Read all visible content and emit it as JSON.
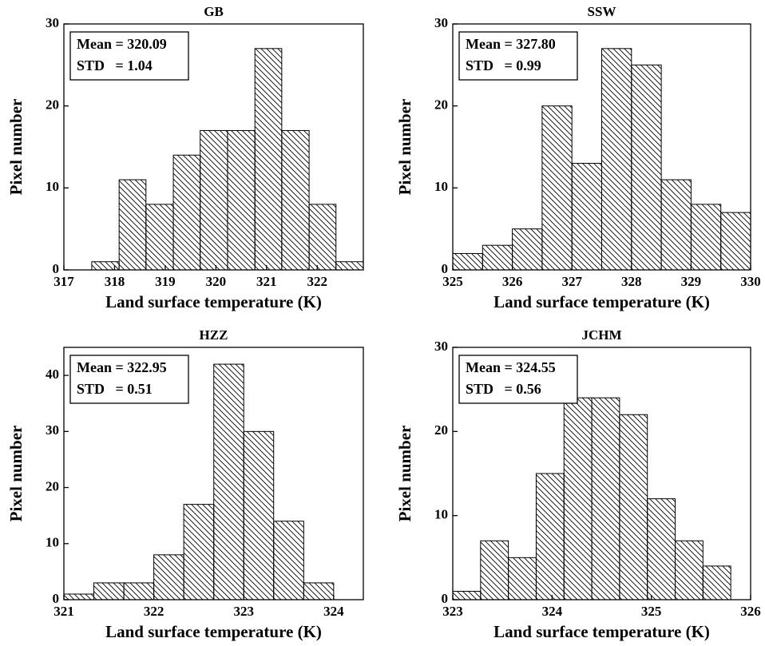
{
  "chart_data": [
    {
      "type": "histogram",
      "title": "GB",
      "xlabel": "Land surface temperature (K)",
      "ylabel": "Pixel number",
      "bins": [
        317.55,
        318.09,
        318.62,
        319.16,
        319.69,
        320.23,
        320.77,
        321.3,
        321.84,
        322.37,
        322.91
      ],
      "values": [
        1,
        11,
        8,
        14,
        17,
        17,
        27,
        17,
        8,
        1
      ],
      "color": "#000000",
      "xlim": [
        317,
        322.91
      ],
      "xticks": [
        317,
        318,
        319,
        320,
        321,
        322
      ],
      "ylim": [
        0,
        30
      ],
      "yticks": [
        0,
        10,
        20,
        30
      ],
      "annotations": [
        "Mean = 320.09",
        "STD   = 1.04"
      ]
    },
    {
      "type": "histogram",
      "title": "SSW",
      "xlabel": "Land surface temperature (K)",
      "ylabel": "Pixel number",
      "bins": [
        325,
        325.5,
        326,
        326.5,
        327,
        327.5,
        328,
        328.5,
        329,
        329.5,
        330
      ],
      "values": [
        2,
        3,
        5,
        20,
        13,
        27,
        25,
        11,
        8,
        7
      ],
      "color": "#000000",
      "xlim": [
        325,
        330
      ],
      "xticks": [
        325,
        326,
        327,
        328,
        329,
        330
      ],
      "ylim": [
        0,
        30
      ],
      "yticks": [
        0,
        10,
        20,
        30
      ],
      "annotations": [
        "Mean = 327.80",
        "STD   = 0.99"
      ]
    },
    {
      "type": "histogram",
      "title": "HZZ",
      "xlabel": "Land surface temperature (K)",
      "ylabel": "Pixel number",
      "bins": [
        321,
        321.333,
        321.667,
        322,
        322.333,
        322.667,
        323,
        323.333,
        323.667,
        324
      ],
      "values": [
        1,
        3,
        3,
        8,
        17,
        42,
        30,
        14,
        3
      ],
      "color": "#000000",
      "xlim": [
        321,
        324.33
      ],
      "xticks": [
        321,
        322,
        323,
        324
      ],
      "ylim": [
        0,
        45
      ],
      "yticks": [
        0,
        10,
        20,
        30,
        40
      ],
      "annotations": [
        "Mean = 322.95",
        "STD   = 0.51"
      ]
    },
    {
      "type": "histogram",
      "title": "JCHM",
      "xlabel": "Land surface temperature (K)",
      "ylabel": "Pixel number",
      "bins": [
        323,
        323.28,
        323.56,
        323.84,
        324.12,
        324.4,
        324.68,
        324.96,
        325.24,
        325.52,
        325.8
      ],
      "values": [
        1,
        7,
        5,
        15,
        24,
        24,
        22,
        12,
        7,
        4
      ],
      "color": "#000000",
      "xlim": [
        323,
        326
      ],
      "xticks": [
        323,
        324,
        325,
        326
      ],
      "ylim": [
        0,
        30
      ],
      "yticks": [
        0,
        10,
        20,
        30
      ],
      "annotations": [
        "Mean = 324.55",
        "STD   = 0.56"
      ]
    }
  ]
}
